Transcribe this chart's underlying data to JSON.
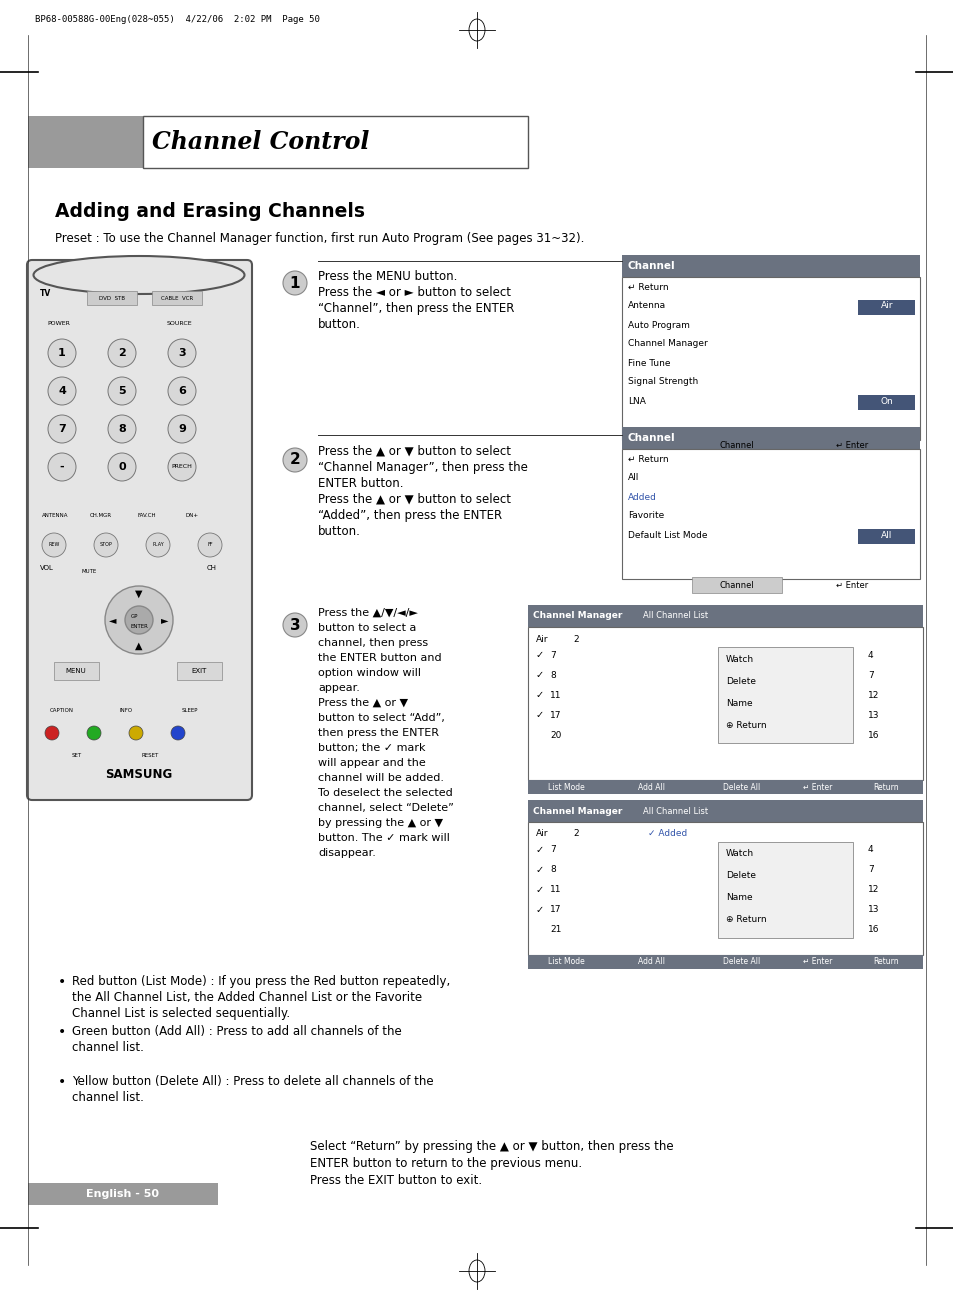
{
  "page_header": "BP68-00588G-00Eng(028~055)  4/22/06  2:02 PM  Page 50",
  "section_title": "Channel Control",
  "subsection_title": "Adding and Erasing Channels",
  "preset_text": "Preset : To use the Channel Manager function, first run Auto Program (See pages 31~32).",
  "step1_lines": [
    "Press the MENU button.",
    "Press the ◄ or ► button to select",
    "“Channel”, then press the ENTER",
    "button."
  ],
  "step2_lines": [
    "Press the ▲ or ▼ button to select",
    "“Channel Manager”, then press the",
    "ENTER button.",
    "Press the ▲ or ▼ button to select",
    "“Added”, then press the ENTER",
    "button."
  ],
  "step3_lines": [
    "Press the ▲/▼/◄/►",
    "button to select a",
    "channel, then press",
    "the ENTER button and",
    "option window will",
    "appear.",
    "Press the ▲ or ▼",
    "button to select “Add”,",
    "then press the ENTER",
    "button; the ✓ mark",
    "will appear and the",
    "channel will be added.",
    "To deselect the selected",
    "channel, select “Delete”",
    "by pressing the ▲ or ▼",
    "button. The ✓ mark will",
    "disappear."
  ],
  "bullet_items": [
    "Red button (List Mode) : If you press the Red button repeatedly,\nthe All Channel List, the Added Channel List or the Favorite\nChannel List is selected sequentially.",
    "Green button (Add All) : Press to add all channels of the\nchannel list.",
    "Yellow button (Delete All) : Press to delete all channels of the\nchannel list."
  ],
  "footer_text": "Select “Return” by pressing the ▲ or ▼ button, then press the\nENTER button to return to the previous menu.\nPress the EXIT button to exit.",
  "page_footer": "English - 50",
  "bg_color": "#ffffff"
}
